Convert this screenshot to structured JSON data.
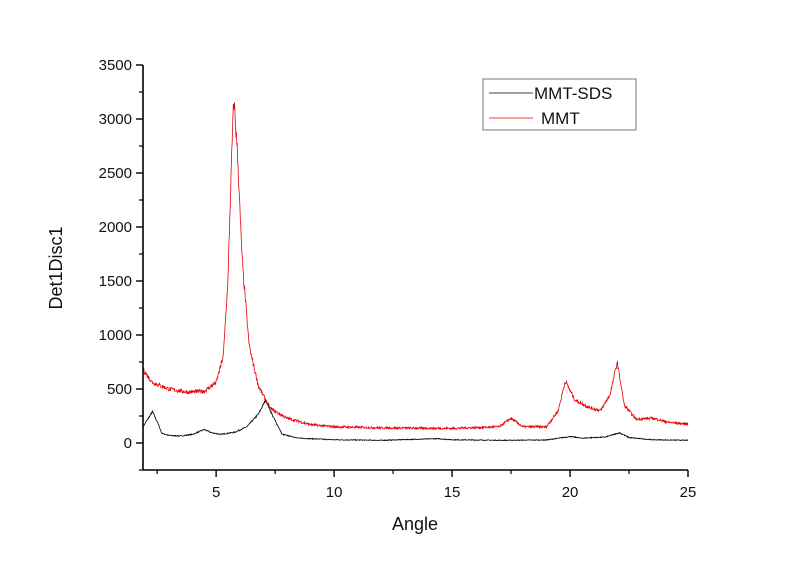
{
  "chart_data": {
    "type": "line",
    "title": "",
    "xlabel": "Angle",
    "ylabel": "Det1Disc1",
    "xlim": [
      1.9,
      25
    ],
    "ylim": [
      -250,
      3500
    ],
    "xticks": [
      5,
      10,
      15,
      20,
      25
    ],
    "xtick_labels": [
      "5",
      "10",
      "15",
      "20",
      "25"
    ],
    "yticks": [
      0,
      500,
      1000,
      1500,
      2000,
      2500,
      3000,
      3500
    ],
    "ytick_labels": [
      "0",
      "500",
      "1000",
      "1500",
      "2000",
      "2500",
      "3000",
      "3500"
    ],
    "grid": false,
    "legend_position": "top-right",
    "series": [
      {
        "name": "MMT-SDS",
        "color": "#000000",
        "points": [
          [
            1.9,
            150
          ],
          [
            2.1,
            220
          ],
          [
            2.3,
            290
          ],
          [
            2.5,
            200
          ],
          [
            2.7,
            90
          ],
          [
            3.0,
            70
          ],
          [
            3.5,
            65
          ],
          [
            4.0,
            80
          ],
          [
            4.5,
            125
          ],
          [
            4.8,
            95
          ],
          [
            5.2,
            80
          ],
          [
            5.8,
            100
          ],
          [
            6.3,
            150
          ],
          [
            6.8,
            270
          ],
          [
            7.1,
            400
          ],
          [
            7.4,
            250
          ],
          [
            7.8,
            80
          ],
          [
            8.5,
            45
          ],
          [
            10,
            30
          ],
          [
            12,
            25
          ],
          [
            14.4,
            40
          ],
          [
            15,
            30
          ],
          [
            17,
            25
          ],
          [
            19,
            28
          ],
          [
            20,
            60
          ],
          [
            20.5,
            45
          ],
          [
            21.5,
            55
          ],
          [
            22.1,
            95
          ],
          [
            22.5,
            50
          ],
          [
            23.5,
            30
          ],
          [
            25,
            25
          ]
        ]
      },
      {
        "name": "MMT",
        "color": "#e8000b",
        "points": [
          [
            1.9,
            680
          ],
          [
            2.3,
            560
          ],
          [
            3.0,
            500
          ],
          [
            3.8,
            470
          ],
          [
            4.5,
            480
          ],
          [
            5.0,
            560
          ],
          [
            5.3,
            800
          ],
          [
            5.5,
            1500
          ],
          [
            5.65,
            2600
          ],
          [
            5.75,
            3190
          ],
          [
            5.9,
            2700
          ],
          [
            6.1,
            1700
          ],
          [
            6.4,
            900
          ],
          [
            6.8,
            520
          ],
          [
            7.3,
            320
          ],
          [
            8.0,
            230
          ],
          [
            9.0,
            170
          ],
          [
            10,
            150
          ],
          [
            12,
            140
          ],
          [
            15,
            135
          ],
          [
            17,
            150
          ],
          [
            17.5,
            230
          ],
          [
            18,
            150
          ],
          [
            19,
            150
          ],
          [
            19.5,
            300
          ],
          [
            19.8,
            575
          ],
          [
            20.2,
            400
          ],
          [
            20.8,
            330
          ],
          [
            21.3,
            300
          ],
          [
            21.7,
            450
          ],
          [
            22.0,
            750
          ],
          [
            22.3,
            350
          ],
          [
            22.8,
            220
          ],
          [
            23.5,
            230
          ],
          [
            24.2,
            190
          ],
          [
            25,
            175
          ]
        ]
      }
    ]
  }
}
